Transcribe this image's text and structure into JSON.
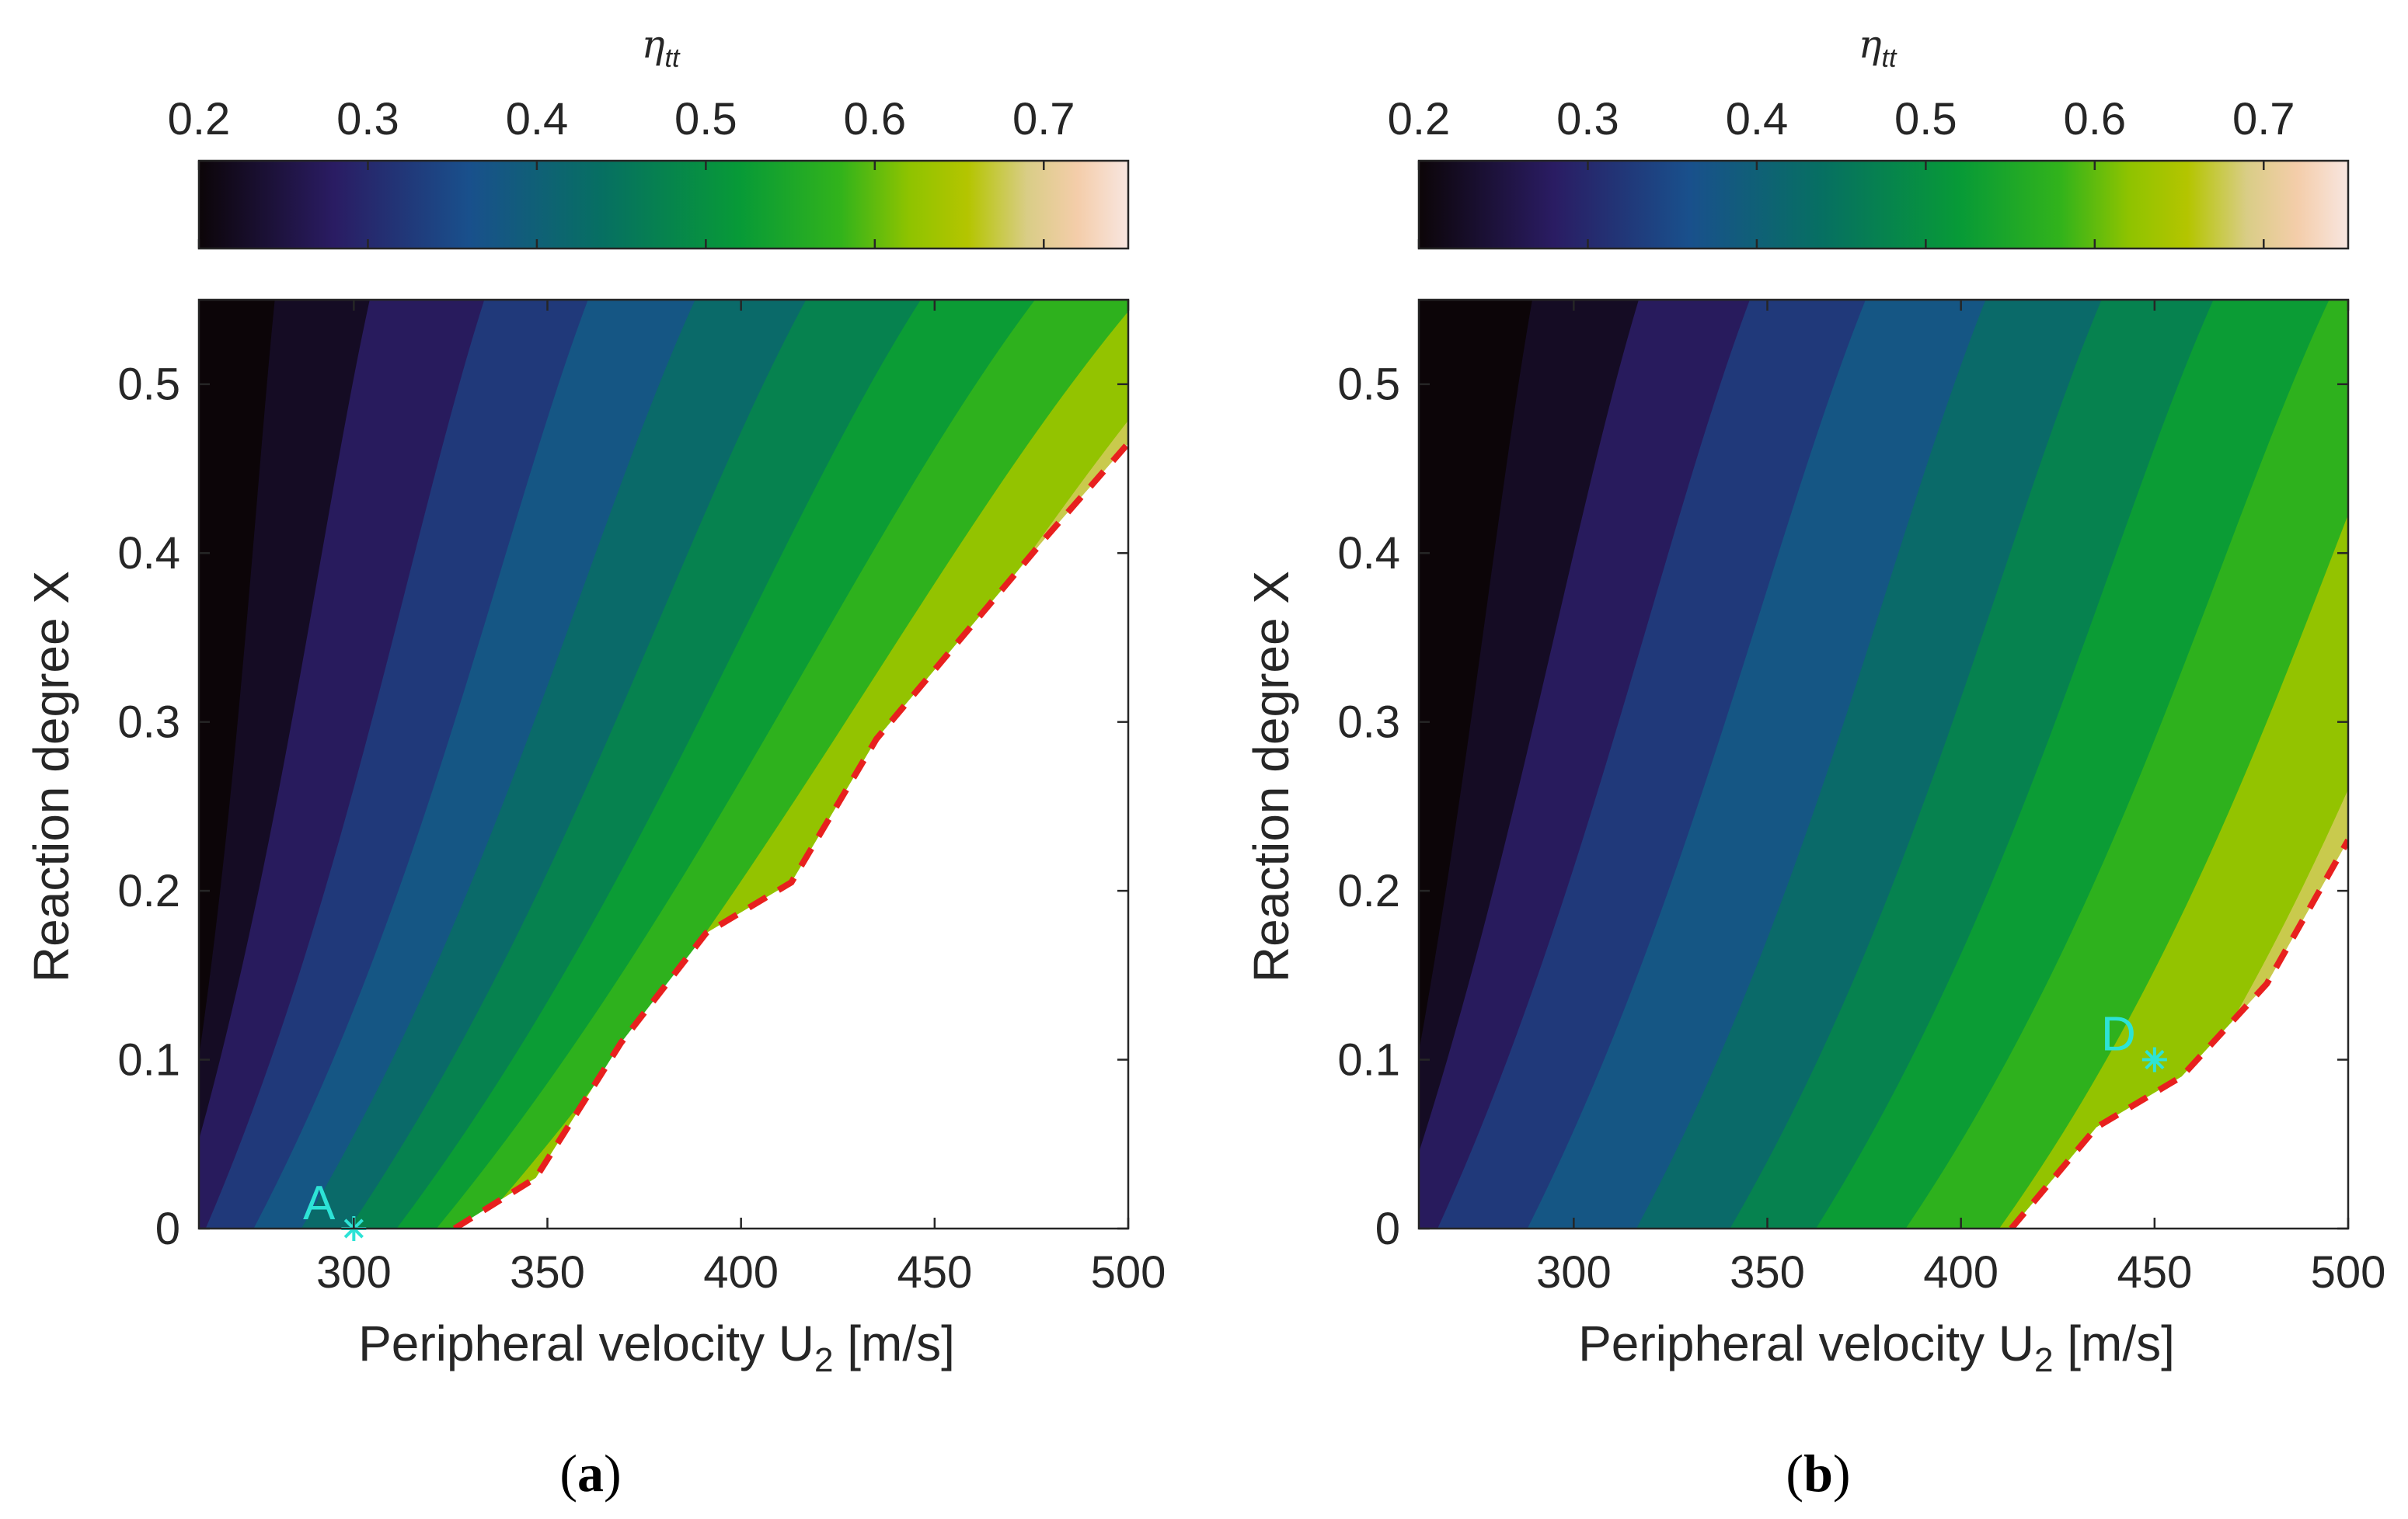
{
  "chart_data": [
    {
      "type": "contour",
      "panel_label": "a",
      "xlabel": "Peripheral velocity U",
      "xlabel_subscript": "2",
      "xlabel_unit": "[m/s]",
      "ylabel": "Reaction degree X",
      "xlim": [
        260,
        500
      ],
      "ylim": [
        0,
        0.55
      ],
      "xticks": [
        300,
        350,
        400,
        450,
        500
      ],
      "yticks": [
        0,
        0.1,
        0.2,
        0.3,
        0.4,
        0.5
      ],
      "colorbar": {
        "label_symbol": "η",
        "label_subscript": "tt",
        "range": [
          0.2,
          0.75
        ],
        "ticks": [
          0.2,
          0.3,
          0.4,
          0.5,
          0.6,
          0.7
        ],
        "stops": [
          {
            "v": 0.2,
            "c": "#0c0508"
          },
          {
            "v": 0.28,
            "c": "#2a1c63"
          },
          {
            "v": 0.36,
            "c": "#19508c"
          },
          {
            "v": 0.44,
            "c": "#067061"
          },
          {
            "v": 0.52,
            "c": "#079a37"
          },
          {
            "v": 0.58,
            "c": "#32b31b"
          },
          {
            "v": 0.62,
            "c": "#8ec300"
          },
          {
            "v": 0.655,
            "c": "#b4c500"
          },
          {
            "v": 0.69,
            "c": "#d9cd86"
          },
          {
            "v": 0.72,
            "c": "#f4cdaa"
          },
          {
            "v": 0.75,
            "c": "#f8e6e0"
          }
        ]
      },
      "levels": [
        0.225,
        0.275,
        0.325,
        0.375,
        0.425,
        0.475,
        0.525,
        0.575,
        0.625,
        0.675
      ],
      "contour_boundaries": [
        {
          "top_x": 280,
          "bottom_x": 252,
          "curv": 8
        },
        {
          "top_x": 305,
          "bottom_x": 252,
          "curv": 12
        },
        {
          "top_x": 335,
          "bottom_x": 260,
          "curv": 16
        },
        {
          "top_x": 362,
          "bottom_x": 272,
          "curv": 20
        },
        {
          "top_x": 390,
          "bottom_x": 284,
          "curv": 22
        },
        {
          "top_x": 419,
          "bottom_x": 296,
          "curv": 24
        },
        {
          "top_x": 449,
          "bottom_x": 308,
          "curv": 26
        },
        {
          "top_x": 479,
          "bottom_x": 318,
          "curv": 27
        },
        {
          "top_x": 506,
          "bottom_x": 328,
          "curv": 28
        },
        {
          "top_x": 530,
          "bottom_x": 340,
          "curv": 28
        }
      ],
      "feasibility_limit": [
        [
          326,
          0.0
        ],
        [
          347,
          0.03
        ],
        [
          369,
          0.11
        ],
        [
          391,
          0.175
        ],
        [
          413,
          0.205
        ],
        [
          435,
          0.29
        ],
        [
          457,
          0.35
        ],
        [
          479,
          0.41
        ],
        [
          500,
          0.465
        ]
      ],
      "limit_color": "#e8201e",
      "marker": {
        "label": "A",
        "x": 300,
        "y": 0.0,
        "color": "#2de3d6"
      }
    },
    {
      "type": "contour",
      "panel_label": "b",
      "xlabel": "Peripheral velocity U",
      "xlabel_subscript": "2",
      "xlabel_unit": "[m/s]",
      "ylabel": "Reaction degree X",
      "xlim": [
        260,
        500
      ],
      "ylim": [
        0,
        0.55
      ],
      "xticks": [
        300,
        350,
        400,
        450,
        500
      ],
      "yticks": [
        0,
        0.1,
        0.2,
        0.3,
        0.4,
        0.5
      ],
      "colorbar": {
        "label_symbol": "η",
        "label_subscript": "tt",
        "range": [
          0.2,
          0.75
        ],
        "ticks": [
          0.2,
          0.3,
          0.4,
          0.5,
          0.6,
          0.7
        ]
      },
      "levels": [
        0.225,
        0.275,
        0.325,
        0.375,
        0.425,
        0.475,
        0.525,
        0.575,
        0.625,
        0.675,
        0.725
      ],
      "contour_boundaries": [
        {
          "top_x": 290,
          "bottom_x": 250,
          "curv": 8
        },
        {
          "top_x": 318,
          "bottom_x": 252,
          "curv": 12
        },
        {
          "top_x": 347,
          "bottom_x": 263,
          "curv": 16
        },
        {
          "top_x": 377,
          "bottom_x": 286,
          "curv": 18
        },
        {
          "top_x": 408,
          "bottom_x": 314,
          "curv": 20
        },
        {
          "top_x": 438,
          "bottom_x": 338,
          "curv": 22
        },
        {
          "top_x": 467,
          "bottom_x": 360,
          "curv": 24
        },
        {
          "top_x": 497,
          "bottom_x": 383,
          "curv": 26
        },
        {
          "top_x": 525,
          "bottom_x": 407,
          "curv": 28
        },
        {
          "top_x": 555,
          "bottom_x": 432,
          "curv": 30
        },
        {
          "top_x": 588,
          "bottom_x": 458,
          "curv": 30
        }
      ],
      "feasibility_limit": [
        [
          413,
          0.0
        ],
        [
          435,
          0.06
        ],
        [
          457,
          0.09
        ],
        [
          479,
          0.145
        ],
        [
          500,
          0.23
        ]
      ],
      "limit_color": "#e8201e",
      "marker": {
        "label": "D",
        "x": 450,
        "y": 0.1,
        "color": "#2de3d6"
      }
    }
  ]
}
